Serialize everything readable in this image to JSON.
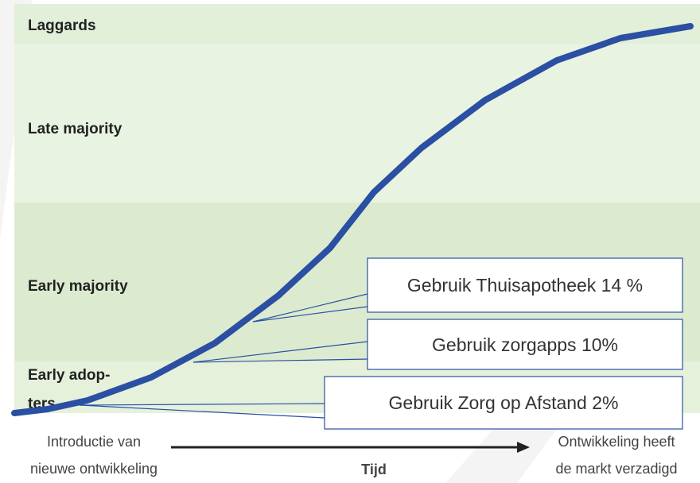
{
  "bands": [
    {
      "lines": [
        "Laggards"
      ]
    },
    {
      "lines": [
        "Late majority"
      ]
    },
    {
      "lines": [
        "Early majority"
      ]
    },
    {
      "lines": [
        "Early adop-",
        "ters"
      ]
    }
  ],
  "callouts": [
    {
      "text": "Gebruik Thuisapotheek 14 %"
    },
    {
      "text": "Gebruik zorgapps 10%"
    },
    {
      "text": "Gebruik Zorg op Afstand 2%"
    }
  ],
  "footer": {
    "start": [
      "Introductie van",
      "nieuwe ontwikkeling"
    ],
    "axis": "Tijd",
    "end": [
      "Ontwikkeling heeft",
      "de markt verzadigd"
    ]
  }
}
